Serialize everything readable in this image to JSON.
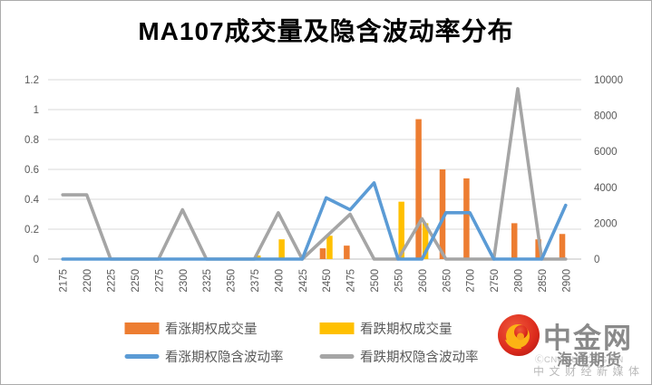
{
  "title": "MA107成交量及隐含波动率分布",
  "colors": {
    "call_volume": "#ED7D31",
    "put_volume": "#FFC000",
    "call_iv": "#5B9BD5",
    "put_iv": "#A5A5A5",
    "gridline": "#D9D9D9",
    "axis_line": "#BFBFBF",
    "tick_text": "#595959",
    "logo_red": "#D6281E",
    "logo_gold": "#FCB315"
  },
  "chart_data": {
    "type": "bar+line combo",
    "title": "MA107成交量及隐含波动率分布",
    "categories": [
      "2175",
      "2200",
      "2225",
      "2250",
      "2275",
      "2300",
      "2325",
      "2350",
      "2375",
      "2400",
      "2425",
      "2450",
      "2475",
      "2500",
      "2550",
      "2600",
      "2650",
      "2700",
      "2750",
      "2800",
      "2850",
      "2900"
    ],
    "series": [
      {
        "name": "看涨期权成交量",
        "type": "bar",
        "axis": "right",
        "color": "#ED7D31",
        "values": [
          0,
          0,
          0,
          0,
          0,
          0,
          0,
          0,
          0,
          0,
          0,
          600,
          750,
          0,
          0,
          7800,
          5000,
          4500,
          0,
          2000,
          1100,
          1400
        ]
      },
      {
        "name": "看跌期权成交量",
        "type": "bar",
        "axis": "right",
        "color": "#FFC000",
        "values": [
          0,
          0,
          0,
          0,
          0,
          0,
          0,
          0,
          200,
          1100,
          0,
          1300,
          0,
          0,
          3200,
          2000,
          0,
          0,
          0,
          0,
          0,
          0
        ]
      },
      {
        "name": "看涨期权隐含波动率",
        "type": "line",
        "axis": "left",
        "color": "#5B9BD5",
        "values": [
          0,
          0,
          0,
          0,
          0,
          0,
          0,
          0,
          0,
          0,
          0,
          0.41,
          0.33,
          0.51,
          0,
          0,
          0.31,
          0.31,
          0,
          0,
          0,
          0.36
        ]
      },
      {
        "name": "看跌期权隐含波动率",
        "type": "line",
        "axis": "left",
        "color": "#A5A5A5",
        "values": [
          0.43,
          0.43,
          0,
          0,
          0,
          0.33,
          0,
          0,
          0,
          0.31,
          0,
          0.15,
          0.3,
          0,
          0,
          0.27,
          0,
          0,
          0,
          1.14,
          0,
          0
        ]
      }
    ],
    "left_axis": {
      "min": 0,
      "max": 1.2,
      "ticks": [
        "0",
        "0.2",
        "0.4",
        "0.6",
        "0.8",
        "1",
        "1.2"
      ]
    },
    "right_axis": {
      "min": 0,
      "max": 10000,
      "ticks": [
        "0",
        "2000",
        "4000",
        "6000",
        "8000",
        "10000"
      ]
    },
    "grid": true,
    "legend_position": "bottom"
  },
  "watermark": {
    "brand": "中金网",
    "url_line": "ⒸCNGOLD.ORG.CN",
    "tagline": "中文财经新媒体",
    "overlay": "海通期货"
  }
}
